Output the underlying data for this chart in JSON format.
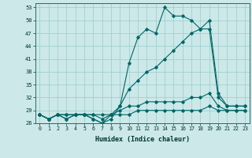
{
  "xlabel": "Humidex (Indice chaleur)",
  "background_color": "#cce8e8",
  "grid_color": "#99cccc",
  "line_color": "#006666",
  "x": [
    0,
    1,
    2,
    3,
    4,
    5,
    6,
    7,
    8,
    9,
    10,
    11,
    12,
    13,
    14,
    15,
    16,
    17,
    18,
    19,
    20,
    21,
    22,
    23
  ],
  "series1": [
    28,
    27,
    28,
    27,
    28,
    28,
    27,
    26,
    27,
    30,
    40,
    46,
    48,
    47,
    53,
    51,
    51,
    50,
    48,
    50,
    33,
    30,
    30,
    30
  ],
  "series2": [
    28,
    27,
    28,
    27,
    28,
    28,
    27,
    26,
    28,
    30,
    34,
    36,
    38,
    39,
    41,
    43,
    45,
    47,
    48,
    48,
    32,
    30,
    30,
    30
  ],
  "series3": [
    28,
    27,
    28,
    28,
    28,
    28,
    28,
    27,
    28,
    29,
    30,
    30,
    31,
    31,
    31,
    31,
    31,
    32,
    32,
    33,
    30,
    29,
    29,
    29
  ],
  "series4": [
    28,
    27,
    28,
    28,
    28,
    28,
    28,
    28,
    28,
    28,
    28,
    29,
    29,
    29,
    29,
    29,
    29,
    29,
    29,
    30,
    29,
    29,
    29,
    29
  ],
  "ylim": [
    26,
    54
  ],
  "yticks": [
    26,
    29,
    32,
    35,
    38,
    41,
    44,
    47,
    50,
    53
  ],
  "xlim": [
    -0.5,
    23.5
  ]
}
